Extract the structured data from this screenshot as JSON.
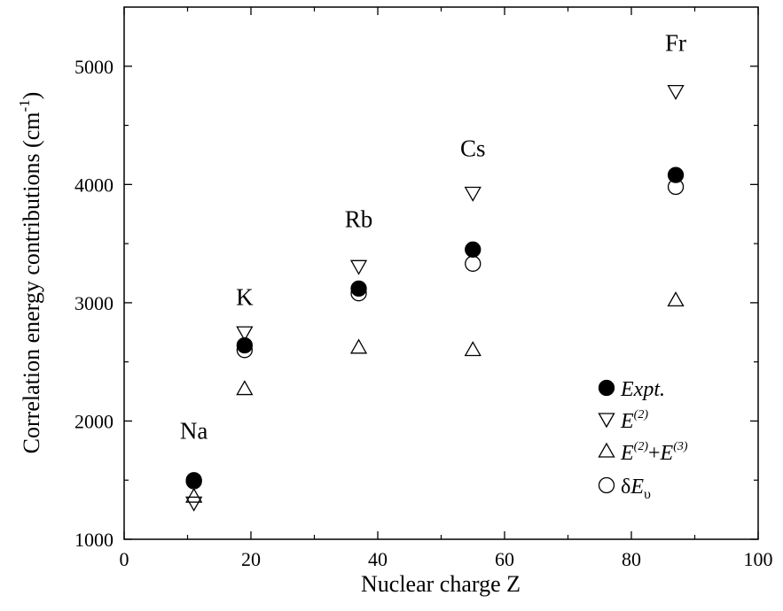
{
  "chart_data": {
    "type": "scatter",
    "xlabel": "Nuclear charge Z",
    "ylabel": "Correlation energy contributions (cm",
    "ylabel_sup": "-1",
    "ylabel_tail": ")",
    "xlim": [
      0,
      100
    ],
    "ylim": [
      1000,
      5500
    ],
    "x_ticks": [
      0,
      20,
      40,
      60,
      80,
      100
    ],
    "x_tick_labels": [
      "0",
      "20",
      "40",
      "60",
      "80",
      "100"
    ],
    "y_ticks": [
      1000,
      2000,
      3000,
      4000,
      5000
    ],
    "y_tick_labels": [
      "1000",
      "2000",
      "3000",
      "4000",
      "5000"
    ],
    "grid": false,
    "legend_position": "lower-right",
    "x": [
      11,
      19,
      37,
      55,
      87
    ],
    "series": [
      {
        "name": "Expt.",
        "marker": "filled-circle",
        "values": [
          1500,
          2640,
          3120,
          3450,
          4080
        ]
      },
      {
        "name": "E(2)",
        "marker": "down-triangle",
        "values": [
          1300,
          2740,
          3300,
          3920,
          4780
        ]
      },
      {
        "name": "E(2)+E(3)",
        "marker": "up-triangle",
        "values": [
          1370,
          2280,
          2630,
          2610,
          3030
        ]
      },
      {
        "name": "δEv",
        "marker": "open-circle",
        "values": [
          1490,
          2600,
          3080,
          3330,
          3980
        ]
      }
    ],
    "annotations": [
      {
        "text": "Na",
        "x": 11,
        "y": 1850
      },
      {
        "text": "K",
        "x": 19,
        "y": 2980
      },
      {
        "text": "Rb",
        "x": 37,
        "y": 3640
      },
      {
        "text": "Cs",
        "x": 55,
        "y": 4240
      },
      {
        "text": "Fr",
        "x": 87,
        "y": 5130
      }
    ]
  },
  "legend": {
    "expt_label": "Expt.",
    "e2_main": "E",
    "e2_sup": "(2)",
    "e23_main1": "E",
    "e23_sup1": "(2)",
    "e23_plus": "+",
    "e23_main2": "E",
    "e23_sup2": "(3)",
    "dev_delta": "δ",
    "dev_main": "E",
    "dev_sub": "υ"
  }
}
